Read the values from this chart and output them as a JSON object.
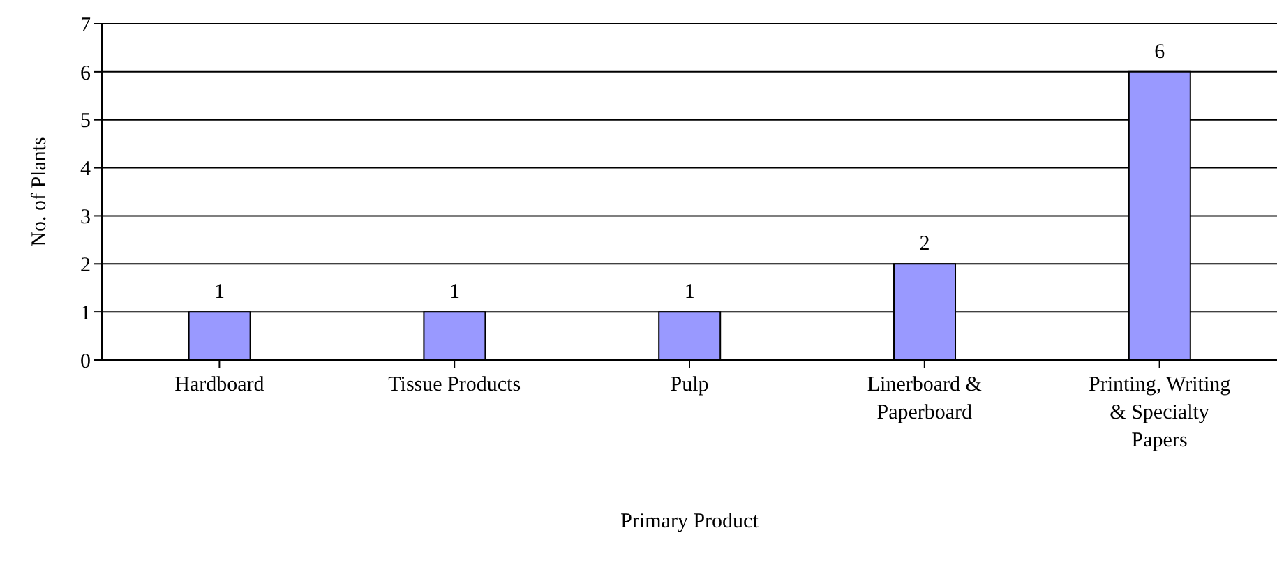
{
  "chart_data": {
    "type": "bar",
    "xlabel": "Primary Product",
    "ylabel": "No. of Plants",
    "categories": [
      "Hardboard",
      "Tissue Products",
      "Pulp",
      "Linerboard & Paperboard",
      "Printing, Writing & Specialty Papers"
    ],
    "values": [
      1,
      1,
      1,
      2,
      6
    ],
    "color": "#9999ff",
    "ylim": [
      0,
      7
    ],
    "yticks": [
      0,
      1,
      2,
      3,
      4,
      5,
      6,
      7
    ],
    "grid": "y",
    "data_labels": true
  }
}
